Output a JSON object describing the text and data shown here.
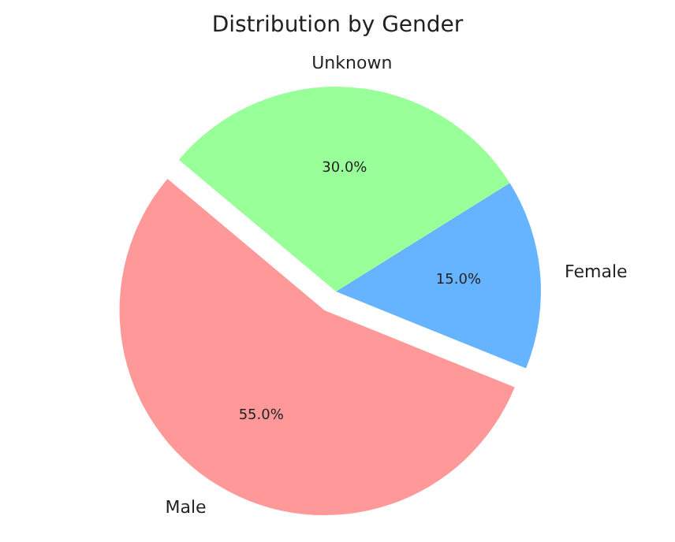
{
  "chart_data": {
    "type": "pie",
    "title": "Distribution by Gender",
    "categories": [
      "Male",
      "Female",
      "Unknown"
    ],
    "values": [
      55,
      15,
      30
    ],
    "colors": [
      "#ff9999",
      "#66b3ff",
      "#99ff99"
    ],
    "value_labels": [
      "55.0%",
      "15.0%",
      "30.0%"
    ]
  }
}
